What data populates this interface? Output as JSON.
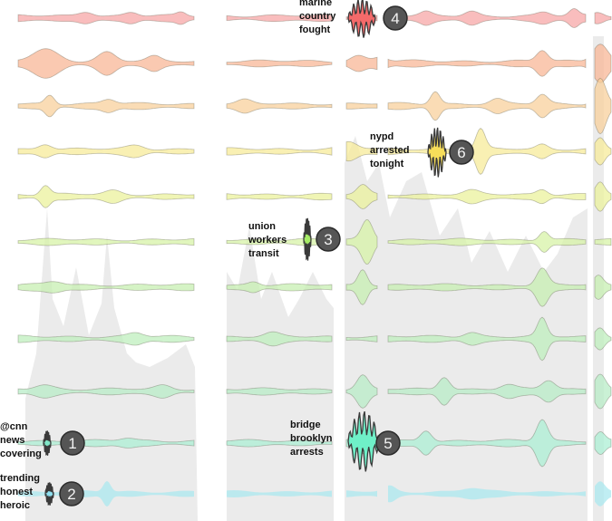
{
  "bands": [
    {
      "name": "band-red",
      "color": "#f7a3a3"
    },
    {
      "name": "band-salmon",
      "color": "#f8b493"
    },
    {
      "name": "band-orange",
      "color": "#f8cf98"
    },
    {
      "name": "band-yellow",
      "color": "#f6ea95"
    },
    {
      "name": "band-lime",
      "color": "#eaf199"
    },
    {
      "name": "band-lightgreen",
      "color": "#d6f2a3"
    },
    {
      "name": "band-green",
      "color": "#c5eeae"
    },
    {
      "name": "band-mint",
      "color": "#bdeebb"
    },
    {
      "name": "band-seafoam",
      "color": "#b5ecc5"
    },
    {
      "name": "band-aqua",
      "color": "#a9eed3"
    },
    {
      "name": "band-cyan",
      "color": "#a7e8ef"
    }
  ],
  "callouts": [
    {
      "number": "1",
      "lines": [
        "@cnn",
        "news",
        "covering"
      ],
      "color": "#7fe6c6",
      "band": 9
    },
    {
      "number": "2",
      "lines": [
        "trending",
        "honest",
        "heroic"
      ],
      "color": "#8fe0f0",
      "band": 10
    },
    {
      "number": "3",
      "lines": [
        "union",
        "workers",
        "transit"
      ],
      "color": "#a6ec66",
      "band": 5
    },
    {
      "number": "4",
      "lines": [
        "marine",
        "country",
        "fought"
      ],
      "color": "#f46a6a",
      "band": 0
    },
    {
      "number": "5",
      "lines": [
        "bridge",
        "brooklyn",
        "arrests"
      ],
      "color": "#6ff0c8",
      "band": 9
    },
    {
      "number": "6",
      "lines": [
        "nypd",
        "arrested",
        "tonight"
      ],
      "color": "#f7de5a",
      "band": 3
    }
  ]
}
